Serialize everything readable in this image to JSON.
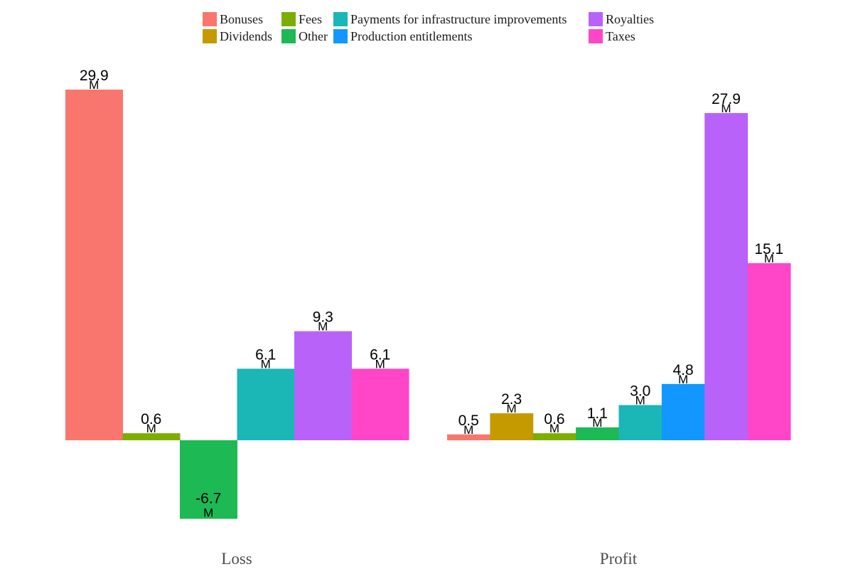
{
  "chart_data": {
    "type": "bar",
    "title": "",
    "xlabel": "",
    "ylabel": "",
    "legend_position": "top",
    "grid": false,
    "ylim": [
      -6.7,
      29.9
    ],
    "categories": [
      "Loss",
      "Profit"
    ],
    "series": [
      {
        "name": "Bonuses",
        "color": "#F8766D",
        "values": [
          29.9,
          0.5
        ],
        "labels": [
          "29.9",
          "0.5"
        ]
      },
      {
        "name": "Dividends",
        "color": "#C49A00",
        "values": [
          null,
          2.3
        ],
        "labels": [
          "",
          "2.3"
        ]
      },
      {
        "name": "Fees",
        "color": "#7CAE00",
        "values": [
          0.6,
          0.6
        ],
        "labels": [
          "0.6",
          "0.6"
        ]
      },
      {
        "name": "Other",
        "color": "#1DB954",
        "values": [
          -6.7,
          1.1
        ],
        "labels": [
          "-6.7",
          "1.1"
        ]
      },
      {
        "name": "Payments for infrastructure improvements",
        "color": "#1BB6B6",
        "values": [
          6.1,
          3.0
        ],
        "labels": [
          "6.1",
          "3.0"
        ]
      },
      {
        "name": "Production entitlements",
        "color": "#1197FF",
        "values": [
          null,
          4.8
        ],
        "labels": [
          "",
          "4.8"
        ]
      },
      {
        "name": "Royalties",
        "color": "#B862FA",
        "values": [
          9.3,
          27.9
        ],
        "labels": [
          "9.3",
          "27.9"
        ]
      },
      {
        "name": "Taxes",
        "color": "#FF45C8",
        "values": [
          6.1,
          15.1
        ],
        "labels": [
          "6.1",
          "15.1"
        ]
      }
    ],
    "unit_label": "M",
    "legend_order": [
      "Bonuses",
      "Dividends",
      "Fees",
      "Other",
      "Payments for infrastructure improvements",
      "Production entitlements",
      "Royalties",
      "Taxes"
    ]
  }
}
